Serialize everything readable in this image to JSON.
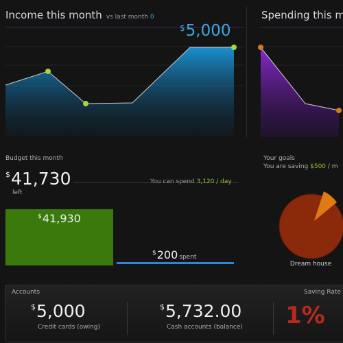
{
  "income": {
    "title": "Income this month",
    "compare_label": "vs last month",
    "compare_value": "0",
    "currency": "$",
    "value": "5,000",
    "color": "#3ea6e0",
    "point_color": "#a6d63a"
  },
  "spending": {
    "title": "Spending this m",
    "color": "#7a2bbf",
    "point_color": "#d9791e"
  },
  "budget": {
    "title": "Budget this month",
    "currency": "$",
    "value": "41,730",
    "left_label": "left",
    "hint_text": "You can spend",
    "hint_value": "3,120 / day",
    "remaining_value": "41,930",
    "spent_value": "200",
    "spent_label": "spent",
    "remaining_color": "#3a7a0c",
    "spent_color": "#2f86d8"
  },
  "goals": {
    "title": "Your goals",
    "saving_prefix": "You are saving",
    "saving_value": "$500",
    "saving_suffix": "/ m",
    "goal_label": "Dream house",
    "goal_progress": 0.06,
    "pie_color": "#8a2a0a",
    "slice_color": "#e07a12"
  },
  "accounts": {
    "title": "Accounts",
    "credit_currency": "$",
    "credit_value": "5,000",
    "credit_label": "Credit cards (owing)",
    "cash_currency": "$",
    "cash_value": "5,732.00",
    "cash_label": "Cash accounts (balance)",
    "saving_rate_title": "Saving Rate (",
    "saving_rate_value": "1%",
    "saving_rate_color": "#b82a1e"
  }
}
